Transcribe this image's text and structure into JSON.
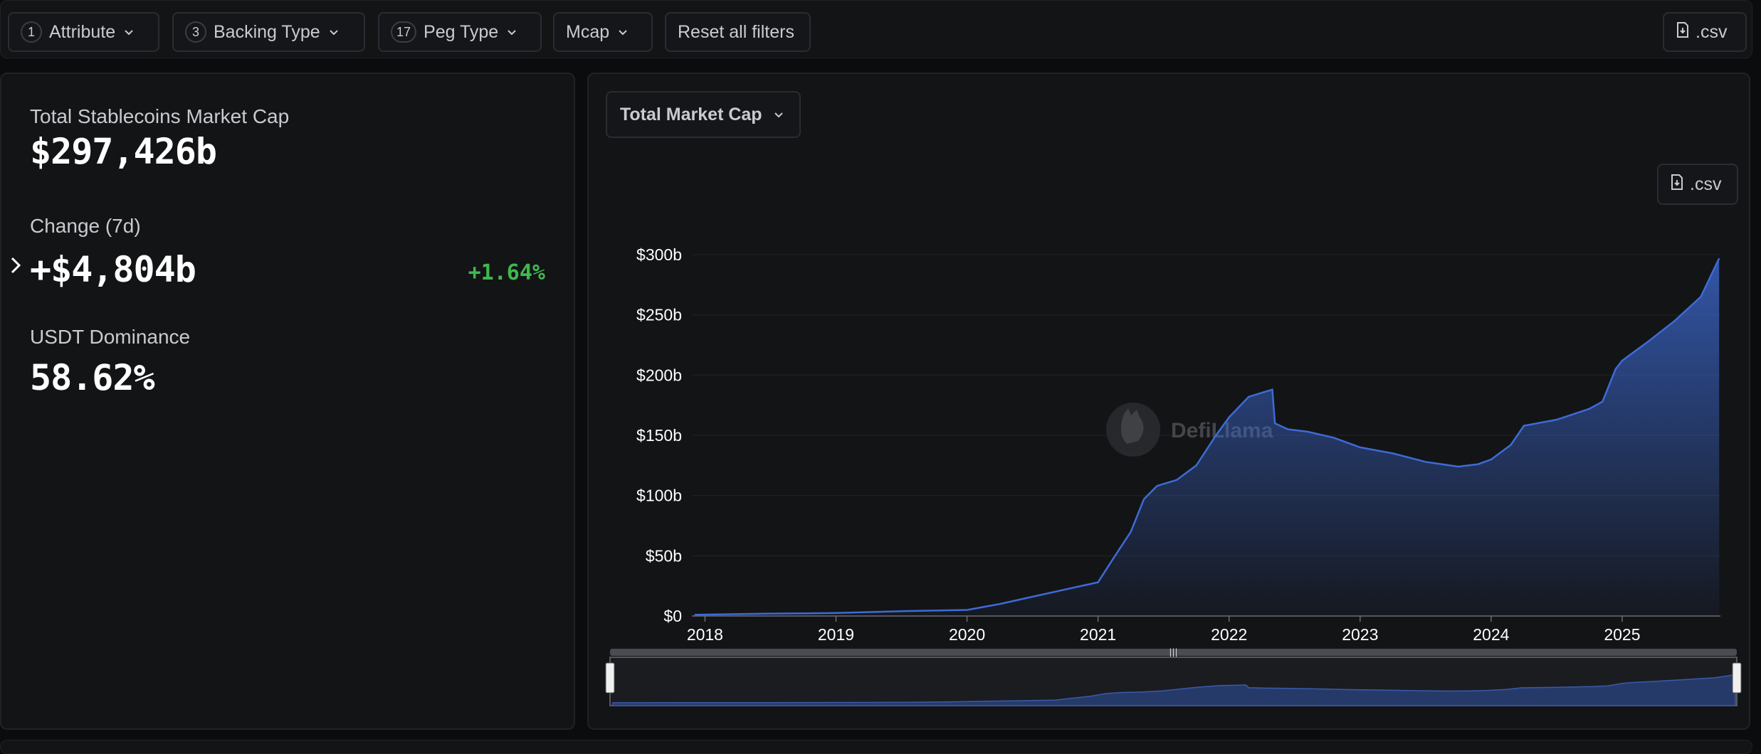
{
  "filters": [
    {
      "count": "1",
      "label": "Attribute"
    },
    {
      "count": "3",
      "label": "Backing Type"
    },
    {
      "count": "17",
      "label": "Peg Type"
    },
    {
      "count": "",
      "label": "Mcap"
    }
  ],
  "reset_label": "Reset all filters",
  "csv_label": ".csv",
  "stats": {
    "total_label": "Total Stablecoins Market Cap",
    "total_value": "$297,426b",
    "change_label": "Change (7d)",
    "change_value": "+$4,804b",
    "change_pct": "+1.64%",
    "dominance_label": "USDT Dominance",
    "dominance_value": "58.62%"
  },
  "chart_panel": {
    "select_label": "Total Market Cap",
    "csv_label": ".csv",
    "watermark": "DefiLlama"
  },
  "colors": {
    "accent": "#3d6bd6",
    "positive": "#3fb84f",
    "background": "#0b0c0e",
    "panel": "#131416"
  },
  "chart_data": {
    "type": "area",
    "title": "",
    "xlabel": "",
    "ylabel": "",
    "x_ticks": [
      "2018",
      "2019",
      "2020",
      "2021",
      "2022",
      "2023",
      "2024",
      "2025"
    ],
    "y_ticks": [
      "$0",
      "$50b",
      "$100b",
      "$150b",
      "$200b",
      "$250b",
      "$300b"
    ],
    "ylim": [
      0,
      300
    ],
    "xlim": [
      2017.9,
      2025.75
    ],
    "grid": true,
    "series": [
      {
        "x": [
          2017.92,
          2018.5,
          2019.0,
          2019.5,
          2020.0,
          2020.25,
          2020.5,
          2020.75,
          2021.0,
          2021.1,
          2021.25,
          2021.35,
          2021.45,
          2021.6,
          2021.75,
          2021.9,
          2022.0,
          2022.15,
          2022.3,
          2022.33,
          2022.35,
          2022.45,
          2022.6,
          2022.8,
          2023.0,
          2023.25,
          2023.5,
          2023.75,
          2023.9,
          2024.0,
          2024.15,
          2024.25,
          2024.5,
          2024.75,
          2024.85,
          2024.95,
          2025.0,
          2025.2,
          2025.4,
          2025.6,
          2025.74
        ],
        "values": [
          1,
          2,
          2.5,
          4,
          5,
          10,
          16,
          22,
          28,
          45,
          70,
          97,
          108,
          113,
          125,
          150,
          165,
          182,
          187,
          188,
          160,
          155,
          153,
          148,
          140,
          135,
          128,
          124,
          126,
          130,
          142,
          158,
          163,
          172,
          178,
          205,
          212,
          228,
          245,
          265,
          297
        ]
      }
    ]
  }
}
